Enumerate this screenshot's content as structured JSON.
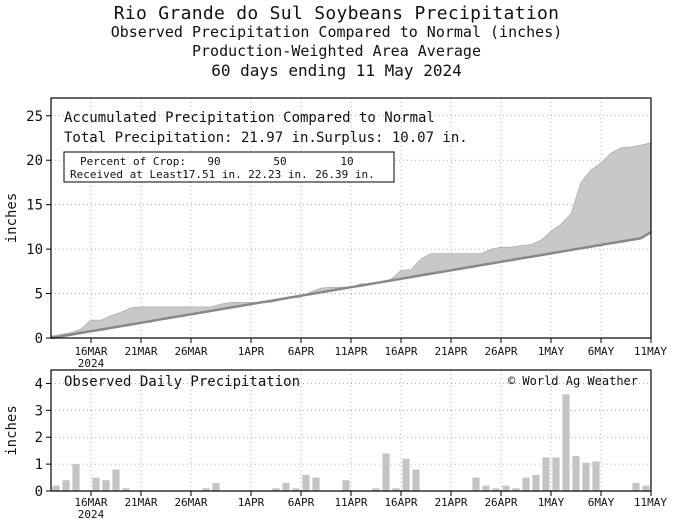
{
  "header": {
    "title": "Rio Grande do Sul Soybeans Precipitation",
    "subtitle": "Observed Precipitation Compared to Normal (inches)",
    "line3": "Production-Weighted Area Average",
    "line4": "60 days ending 11 May 2024"
  },
  "colors": {
    "surplus_fill": "#c8c8c8",
    "normal_line": "#888888",
    "bar_fill": "#c4c4c4",
    "frame": "#000000"
  },
  "chart_data": [
    {
      "type": "area",
      "panel": "accumulated",
      "title": "Accumulated Precipitation Compared to Normal",
      "total_label": "Total Precipitation: 21.97 in.",
      "surplus_label": "Surplus: 10.07 in.",
      "crop_table": {
        "row1_label": "Percent of Crop:",
        "row2_label": "Received at Least:",
        "percent": [
          "90",
          "50",
          "10"
        ],
        "received": [
          "17.51 in.",
          "22.23 in.",
          "26.39 in."
        ]
      },
      "ylabel": "inches",
      "ylim": [
        0,
        27
      ],
      "yticks": [
        0,
        5,
        10,
        15,
        20,
        25
      ],
      "x_tick_labels": [
        "16MAR",
        "21MAR",
        "26MAR",
        "1APR",
        "6APR",
        "11APR",
        "16APR",
        "21APR",
        "26APR",
        "1MAY",
        "6MAY",
        "11MAY"
      ],
      "x_tick_days": [
        4,
        9,
        14,
        20,
        25,
        30,
        35,
        40,
        45,
        50,
        55,
        60
      ],
      "first_label_year": "2024",
      "x_days": [
        0,
        1,
        2,
        3,
        4,
        5,
        6,
        7,
        8,
        9,
        10,
        11,
        12,
        13,
        14,
        15,
        16,
        17,
        18,
        19,
        20,
        21,
        22,
        23,
        24,
        25,
        26,
        27,
        28,
        29,
        30,
        31,
        32,
        33,
        34,
        35,
        36,
        37,
        38,
        39,
        40,
        41,
        42,
        43,
        44,
        45,
        46,
        47,
        48,
        49,
        50,
        51,
        52,
        53,
        54,
        55,
        56,
        57,
        58,
        59,
        60
      ],
      "series": [
        {
          "name": "Observed",
          "values": [
            0.2,
            0.4,
            0.6,
            1.0,
            2.0,
            2.0,
            2.5,
            2.9,
            3.4,
            3.5,
            3.5,
            3.5,
            3.5,
            3.5,
            3.5,
            3.5,
            3.5,
            3.8,
            4.0,
            4.0,
            4.0,
            4.0,
            4.0,
            4.3,
            4.5,
            4.6,
            5.2,
            5.6,
            5.7,
            5.7,
            5.7,
            6.1,
            6.1,
            6.2,
            6.6,
            7.6,
            7.7,
            8.9,
            9.5,
            9.5,
            9.5,
            9.5,
            9.5,
            9.5,
            10.0,
            10.2,
            10.2,
            10.4,
            10.5,
            11.0,
            12.0,
            12.8,
            14.0,
            17.5,
            18.9,
            19.7,
            20.8,
            21.4,
            21.5,
            21.7,
            21.97
          ]
        },
        {
          "name": "Normal",
          "values": [
            0.0,
            0.19,
            0.38,
            0.57,
            0.76,
            0.95,
            1.14,
            1.33,
            1.52,
            1.71,
            1.9,
            2.1,
            2.29,
            2.48,
            2.67,
            2.86,
            3.05,
            3.24,
            3.43,
            3.62,
            3.81,
            4.0,
            4.19,
            4.38,
            4.57,
            4.76,
            4.95,
            5.14,
            5.33,
            5.52,
            5.71,
            5.9,
            6.09,
            6.28,
            6.47,
            6.66,
            6.85,
            7.04,
            7.24,
            7.43,
            7.62,
            7.81,
            8.0,
            8.19,
            8.38,
            8.57,
            8.76,
            8.95,
            9.14,
            9.33,
            9.52,
            9.71,
            9.9,
            10.09,
            10.28,
            10.47,
            10.66,
            10.85,
            11.04,
            11.23,
            11.9
          ]
        }
      ]
    },
    {
      "type": "bar",
      "panel": "daily",
      "title": "Observed Daily Precipitation",
      "credit": "© World Ag Weather",
      "ylabel": "inches",
      "ylim": [
        0,
        4.5
      ],
      "yticks": [
        0,
        1,
        2,
        3,
        4
      ],
      "x_tick_labels": [
        "16MAR",
        "21MAR",
        "26MAR",
        "1APR",
        "6APR",
        "11APR",
        "16APR",
        "21APR",
        "26APR",
        "1MAY",
        "6MAY",
        "11MAY"
      ],
      "x_tick_days": [
        4,
        9,
        14,
        20,
        25,
        30,
        35,
        40,
        45,
        50,
        55,
        60
      ],
      "first_label_year": "2024",
      "days": [
        1,
        2,
        3,
        4,
        5,
        6,
        7,
        8,
        9,
        10,
        11,
        12,
        13,
        14,
        15,
        16,
        17,
        18,
        19,
        20,
        21,
        22,
        23,
        24,
        25,
        26,
        27,
        28,
        29,
        30,
        31,
        32,
        33,
        34,
        35,
        36,
        37,
        38,
        39,
        40,
        41,
        42,
        43,
        44,
        45,
        46,
        47,
        48,
        49,
        50,
        51,
        52,
        53,
        54,
        55,
        56,
        57,
        58,
        59,
        60
      ],
      "values": [
        0.2,
        0.4,
        1.0,
        0.0,
        0.5,
        0.4,
        0.8,
        0.1,
        0.0,
        0.0,
        0.0,
        0.0,
        0.0,
        0.0,
        0.0,
        0.1,
        0.3,
        0.0,
        0.0,
        0.0,
        0.0,
        0.0,
        0.1,
        0.3,
        0.1,
        0.6,
        0.5,
        0.0,
        0.0,
        0.4,
        0.0,
        0.0,
        0.1,
        1.4,
        0.1,
        1.2,
        0.8,
        0.0,
        0.0,
        0.0,
        0.0,
        0.0,
        0.5,
        0.2,
        0.1,
        0.2,
        0.1,
        0.5,
        0.6,
        1.25,
        1.25,
        3.6,
        1.3,
        1.05,
        1.1,
        0.0,
        0.0,
        0.0,
        0.3,
        0.2
      ]
    }
  ]
}
